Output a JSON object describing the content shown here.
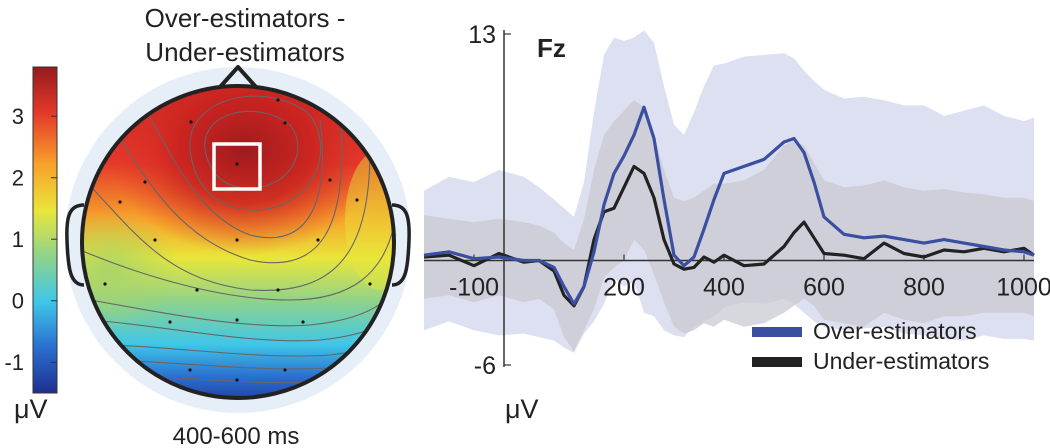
{
  "chart_data": [
    {
      "type": "heatmap",
      "title": "Over-estimators - Under-estimators",
      "subtitle_line1": "Over-estimators -",
      "subtitle_line2": "Under-estimators",
      "time_window": "400-600 ms",
      "colorbar": {
        "unit": "μV",
        "ticks": [
          {
            "value": 3,
            "label": "3"
          },
          {
            "value": 2,
            "label": "2"
          },
          {
            "value": 1,
            "label": "1"
          },
          {
            "value": 0,
            "label": "0"
          },
          {
            "value": -1,
            "label": "-1"
          }
        ],
        "range": [
          -1.5,
          3.8
        ],
        "colormap": "jet"
      },
      "highlight": "frontal-central electrode (Fz) region",
      "peak_region": "frontal",
      "peak_value": 3.5,
      "min_region": "occipital",
      "min_value": -1.5
    },
    {
      "type": "line",
      "title": "Fz",
      "xlabel": "",
      "ylabel": "μV",
      "xlim": [
        -200,
        1020
      ],
      "ylim": [
        -6,
        13
      ],
      "x_ticks": [
        {
          "value": -100,
          "label": "-100"
        },
        {
          "value": 200,
          "label": "200"
        },
        {
          "value": 400,
          "label": "400"
        },
        {
          "value": 600,
          "label": "600"
        },
        {
          "value": 800,
          "label": "800"
        },
        {
          "value": 1000,
          "label": "1000"
        }
      ],
      "y_ticks": [
        {
          "value": 13,
          "label": "13"
        },
        {
          "value": -6,
          "label": "-6"
        }
      ],
      "legend_position": "bottom-right",
      "series": [
        {
          "name": "Over-estimators",
          "color": "#3a4fa0",
          "band_color": "#dde0f0",
          "x": [
            -200,
            -150,
            -100,
            -50,
            0,
            30,
            60,
            80,
            100,
            120,
            140,
            160,
            180,
            200,
            220,
            240,
            260,
            280,
            300,
            320,
            340,
            360,
            380,
            400,
            440,
            480,
            520,
            540,
            560,
            580,
            600,
            640,
            680,
            720,
            760,
            800,
            840,
            880,
            920,
            960,
            1000,
            1020
          ],
          "y": [
            0.3,
            0.5,
            0.1,
            0.2,
            0.0,
            0.0,
            -0.4,
            -1.5,
            -2.5,
            -1.5,
            0.5,
            3.2,
            5.0,
            6.0,
            7.2,
            8.8,
            7.0,
            3.5,
            0.3,
            -0.3,
            0.2,
            1.8,
            3.5,
            5.0,
            5.4,
            5.8,
            6.8,
            7.0,
            6.2,
            4.5,
            2.5,
            1.5,
            1.3,
            1.4,
            1.2,
            1.0,
            1.2,
            1.0,
            0.8,
            0.6,
            0.5,
            0.3
          ],
          "upper": [
            4.0,
            4.8,
            4.5,
            5.2,
            4.8,
            4.2,
            3.5,
            3.0,
            2.5,
            4.5,
            8.5,
            11.8,
            12.8,
            12.6,
            12.8,
            13.2,
            12.5,
            10.0,
            7.8,
            7.2,
            8.5,
            10.0,
            11.2,
            11.3,
            11.7,
            11.8,
            11.9,
            11.6,
            10.9,
            10.3,
            9.8,
            9.3,
            9.4,
            9.2,
            8.9,
            8.9,
            8.3,
            8.6,
            8.9,
            8.3,
            8.0,
            8.2
          ],
          "lower": [
            -4.0,
            -3.5,
            -4.0,
            -4.3,
            -4.2,
            -4.4,
            -4.6,
            -5.0,
            -5.3,
            -4.2,
            -3.5,
            -2.5,
            -1.0,
            -1.5,
            -1.2,
            -3.0,
            -3.2,
            -4.0,
            -4.3,
            -4.4,
            -3.8,
            -3.5,
            -3.2,
            -2.7,
            -2.4,
            -2.5,
            -2.2,
            -2.5,
            -3.0,
            -3.5,
            -3.8,
            -4.0,
            -3.9,
            -3.8,
            -4.2,
            -4.3,
            -4.5,
            -4.6,
            -4.3,
            -4.5,
            -4.5,
            -4.6
          ]
        },
        {
          "name": "Under-estimators",
          "color": "#222222",
          "band_color": "#c9cad3",
          "x": [
            -200,
            -150,
            -100,
            -50,
            0,
            30,
            60,
            80,
            100,
            120,
            140,
            160,
            180,
            200,
            220,
            240,
            260,
            280,
            300,
            320,
            340,
            360,
            380,
            400,
            440,
            480,
            520,
            540,
            560,
            580,
            600,
            640,
            680,
            720,
            760,
            800,
            840,
            880,
            920,
            960,
            1000,
            1020
          ],
          "y": [
            0.2,
            0.3,
            -0.3,
            0.4,
            -0.1,
            0.0,
            -0.6,
            -2.0,
            -2.6,
            -1.5,
            1.2,
            2.8,
            3.0,
            4.2,
            5.4,
            5.0,
            3.6,
            1.2,
            -0.2,
            -0.5,
            -0.4,
            0.2,
            -0.1,
            0.3,
            -0.3,
            -0.2,
            0.8,
            1.6,
            2.2,
            1.3,
            0.4,
            0.3,
            0.1,
            1.0,
            0.4,
            0.2,
            0.6,
            0.5,
            0.7,
            0.5,
            0.7,
            0.3
          ],
          "upper": [
            2.6,
            2.4,
            2.2,
            2.4,
            2.2,
            2.0,
            1.6,
            1.0,
            0.6,
            2.4,
            5.2,
            7.2,
            8.0,
            8.6,
            9.2,
            8.8,
            7.2,
            5.2,
            3.6,
            3.4,
            3.6,
            4.0,
            4.4,
            4.4,
            4.6,
            5.2,
            6.6,
            6.9,
            6.6,
            5.6,
            4.6,
            4.2,
            4.3,
            4.6,
            4.2,
            4.0,
            4.1,
            3.9,
            3.8,
            3.6,
            3.6,
            3.4
          ],
          "lower": [
            -2.2,
            -2.0,
            -2.4,
            -2.0,
            -2.4,
            -2.2,
            -2.8,
            -4.4,
            -5.2,
            -4.0,
            -2.8,
            -1.0,
            -0.4,
            0.0,
            1.2,
            0.6,
            -0.8,
            -2.4,
            -3.8,
            -4.2,
            -4.0,
            -3.6,
            -3.8,
            -3.4,
            -3.8,
            -3.6,
            -3.0,
            -2.6,
            -2.2,
            -2.6,
            -3.4,
            -3.6,
            -3.8,
            -3.0,
            -3.4,
            -3.6,
            -3.2,
            -3.2,
            -3.0,
            -3.0,
            -3.0,
            -3.2
          ]
        }
      ]
    }
  ]
}
